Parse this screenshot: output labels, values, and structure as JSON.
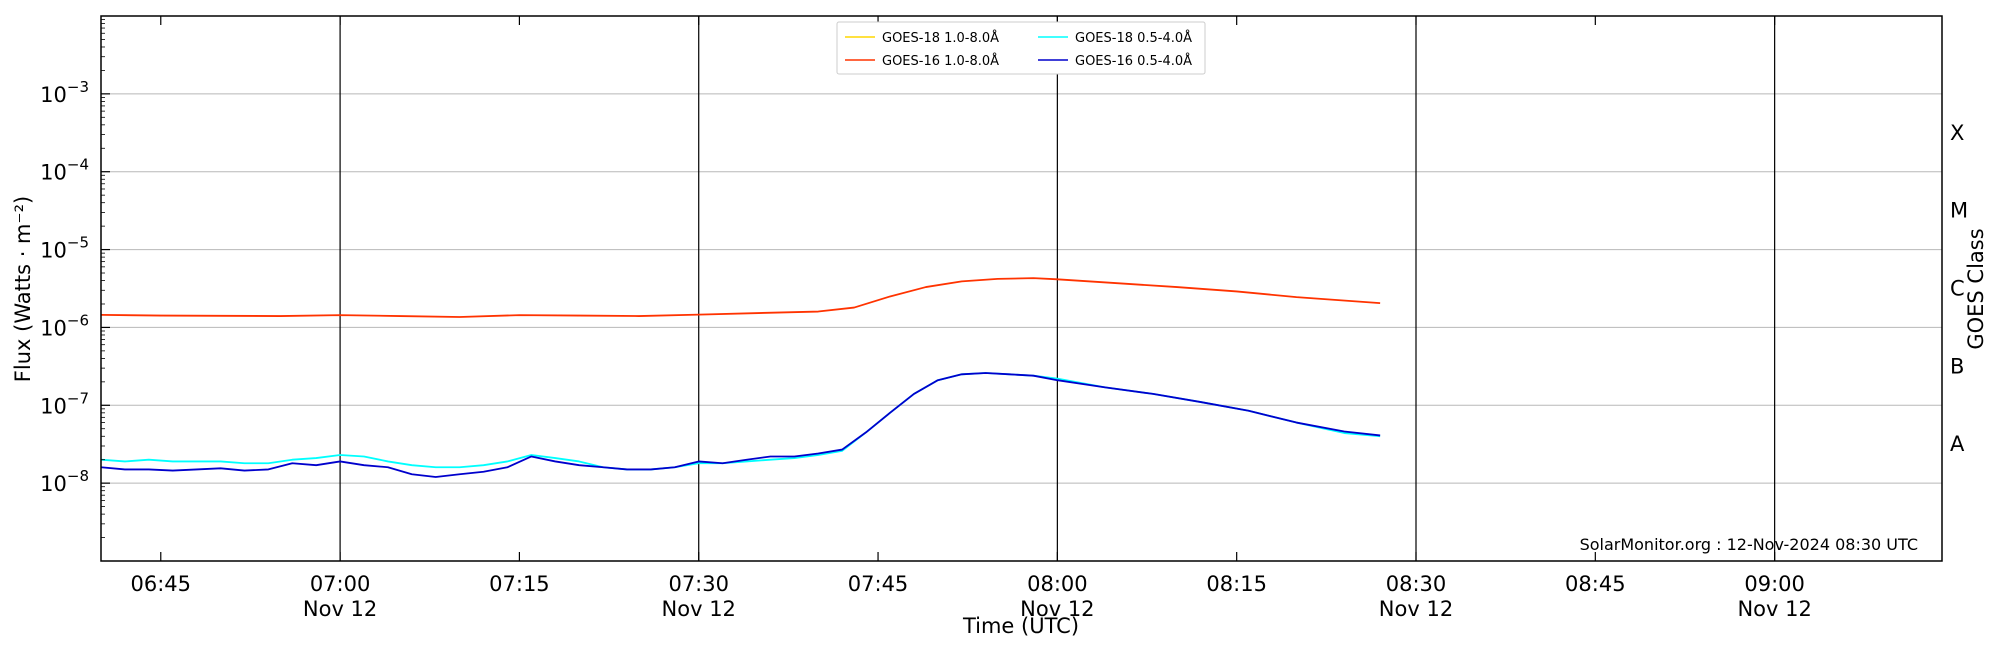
{
  "chart_data": {
    "type": "line",
    "ylabel": "Flux (Watts · m⁻²)",
    "xlabel": "Time (UTC)",
    "right_ylabel": "GOES Class",
    "y_scale": "log",
    "ylim_exp": [
      -9,
      -2
    ],
    "xlim_minutes": [
      "06:40",
      "09:14"
    ],
    "grid": "horizontal",
    "legend_placement": "top-center",
    "credit": "SolarMonitor.org : 12-Nov-2024 08:30 UTC",
    "y_ticks": [
      {
        "exp": -8,
        "base": "10",
        "power": "−8"
      },
      {
        "exp": -7,
        "base": "10",
        "power": "−7"
      },
      {
        "exp": -6,
        "base": "10",
        "power": "−6"
      },
      {
        "exp": -5,
        "base": "10",
        "power": "−5"
      },
      {
        "exp": -4,
        "base": "10",
        "power": "−4"
      },
      {
        "exp": -3,
        "base": "10",
        "power": "−3"
      }
    ],
    "x_ticks": [
      {
        "time": "06:45",
        "label": "06:45",
        "date": ""
      },
      {
        "time": "07:00",
        "label": "07:00",
        "date": "Nov 12"
      },
      {
        "time": "07:15",
        "label": "07:15",
        "date": ""
      },
      {
        "time": "07:30",
        "label": "07:30",
        "date": "Nov 12"
      },
      {
        "time": "07:45",
        "label": "07:45",
        "date": ""
      },
      {
        "time": "08:00",
        "label": "08:00",
        "date": "Nov 12"
      },
      {
        "time": "08:15",
        "label": "08:15",
        "date": ""
      },
      {
        "time": "08:30",
        "label": "08:30",
        "date": "Nov 12"
      },
      {
        "time": "08:45",
        "label": "08:45",
        "date": ""
      },
      {
        "time": "09:00",
        "label": "09:00",
        "date": "Nov 12"
      }
    ],
    "vertical_lines": [
      "07:00",
      "07:30",
      "08:00",
      "08:30",
      "09:00"
    ],
    "goes_classes": [
      {
        "label": "A",
        "exp": -7.5
      },
      {
        "label": "B",
        "exp": -6.5
      },
      {
        "label": "C",
        "exp": -5.5
      },
      {
        "label": "M",
        "exp": -4.5
      },
      {
        "label": "X",
        "exp": -3.5
      }
    ],
    "series": [
      {
        "name": "GOES-18 1.0-8.0Å",
        "color": "#ffd700",
        "x": [],
        "y": []
      },
      {
        "name": "GOES-16 1.0-8.0Å",
        "color": "#ff3300",
        "x": [
          "06:40",
          "06:45",
          "06:50",
          "06:55",
          "07:00",
          "07:05",
          "07:10",
          "07:15",
          "07:20",
          "07:25",
          "07:30",
          "07:35",
          "07:40",
          "07:43",
          "07:46",
          "07:49",
          "07:52",
          "07:55",
          "07:58",
          "08:00",
          "08:05",
          "08:10",
          "08:15",
          "08:20",
          "08:27"
        ],
        "y": [
          1.45e-06,
          1.42e-06,
          1.41e-06,
          1.4e-06,
          1.44e-06,
          1.4e-06,
          1.36e-06,
          1.44e-06,
          1.42e-06,
          1.4e-06,
          1.46e-06,
          1.53e-06,
          1.6e-06,
          1.8e-06,
          2.5e-06,
          3.3e-06,
          3.9e-06,
          4.2e-06,
          4.3e-06,
          4.15e-06,
          3.7e-06,
          3.3e-06,
          2.9e-06,
          2.45e-06,
          2.05e-06
        ]
      },
      {
        "name": "GOES-18 0.5-4.0Å",
        "color": "#00ffff",
        "x": [
          "06:40",
          "06:42",
          "06:44",
          "06:46",
          "06:48",
          "06:50",
          "06:52",
          "06:54",
          "06:56",
          "06:58",
          "07:00",
          "07:02",
          "07:04",
          "07:06",
          "07:08",
          "07:10",
          "07:12",
          "07:14",
          "07:16",
          "07:18",
          "07:20",
          "07:22",
          "07:24",
          "07:26",
          "07:28",
          "07:30",
          "07:32",
          "07:34",
          "07:36",
          "07:38",
          "07:40",
          "07:42",
          "07:44",
          "07:46",
          "07:48",
          "07:50",
          "07:52",
          "07:54",
          "07:56",
          "07:58",
          "08:00",
          "08:04",
          "08:08",
          "08:12",
          "08:16",
          "08:20",
          "08:24",
          "08:27"
        ],
        "y": [
          2e-08,
          1.9e-08,
          2e-08,
          1.9e-08,
          1.9e-08,
          1.9e-08,
          1.8e-08,
          1.8e-08,
          2e-08,
          2.1e-08,
          2.3e-08,
          2.2e-08,
          1.9e-08,
          1.7e-08,
          1.6e-08,
          1.6e-08,
          1.7e-08,
          1.9e-08,
          2.3e-08,
          2.1e-08,
          1.9e-08,
          1.6e-08,
          1.5e-08,
          1.5e-08,
          1.6e-08,
          1.8e-08,
          1.8e-08,
          1.9e-08,
          2e-08,
          2.1e-08,
          2.3e-08,
          2.6e-08,
          4.5e-08,
          8e-08,
          1.4e-07,
          2.1e-07,
          2.5e-07,
          2.6e-07,
          2.5e-07,
          2.4e-07,
          2.2e-07,
          1.7e-07,
          1.4e-07,
          1.1e-07,
          8.5e-08,
          6e-08,
          4.4e-08,
          4e-08
        ]
      },
      {
        "name": "GOES-16 0.5-4.0Å",
        "color": "#0000cc",
        "x": [
          "06:40",
          "06:42",
          "06:44",
          "06:46",
          "06:48",
          "06:50",
          "06:52",
          "06:54",
          "06:56",
          "06:58",
          "07:00",
          "07:02",
          "07:04",
          "07:06",
          "07:08",
          "07:10",
          "07:12",
          "07:14",
          "07:16",
          "07:18",
          "07:20",
          "07:22",
          "07:24",
          "07:26",
          "07:28",
          "07:30",
          "07:32",
          "07:34",
          "07:36",
          "07:38",
          "07:40",
          "07:42",
          "07:44",
          "07:46",
          "07:48",
          "07:50",
          "07:52",
          "07:54",
          "07:56",
          "07:58",
          "08:00",
          "08:04",
          "08:08",
          "08:12",
          "08:16",
          "08:20",
          "08:24",
          "08:27"
        ],
        "y": [
          1.6e-08,
          1.5e-08,
          1.5e-08,
          1.45e-08,
          1.5e-08,
          1.55e-08,
          1.45e-08,
          1.5e-08,
          1.8e-08,
          1.7e-08,
          1.9e-08,
          1.7e-08,
          1.6e-08,
          1.3e-08,
          1.2e-08,
          1.3e-08,
          1.4e-08,
          1.6e-08,
          2.2e-08,
          1.9e-08,
          1.7e-08,
          1.6e-08,
          1.5e-08,
          1.5e-08,
          1.6e-08,
          1.9e-08,
          1.8e-08,
          2e-08,
          2.2e-08,
          2.2e-08,
          2.4e-08,
          2.7e-08,
          4.5e-08,
          8e-08,
          1.4e-07,
          2.1e-07,
          2.5e-07,
          2.6e-07,
          2.5e-07,
          2.4e-07,
          2.1e-07,
          1.7e-07,
          1.4e-07,
          1.1e-07,
          8.5e-08,
          6e-08,
          4.6e-08,
          4.1e-08
        ]
      }
    ]
  }
}
